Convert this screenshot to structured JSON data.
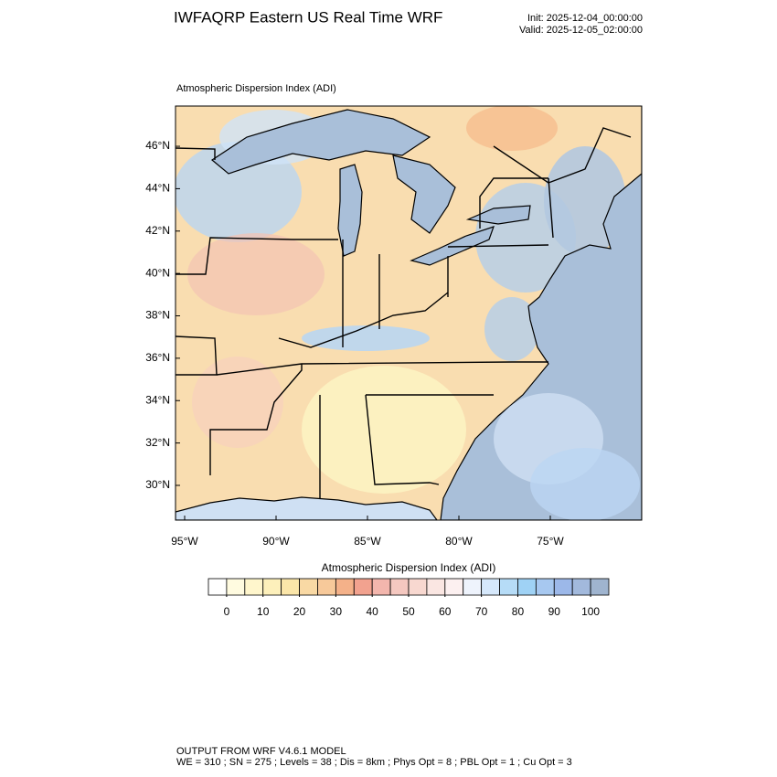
{
  "header": {
    "title": "IWFAQRP Eastern US Real Time WRF",
    "init": "Init: 2025-12-04_00:00:00",
    "valid": "Valid: 2025-12-05_02:00:00"
  },
  "map": {
    "title": "Atmospheric Dispersion Index   (ADI)",
    "latlim": [
      28.36,
      47.9
    ],
    "lonlim": [
      -95.5,
      -70.0
    ],
    "latticks": [
      {
        "value": 30,
        "label": "30°N"
      },
      {
        "value": 32,
        "label": "32°N"
      },
      {
        "value": 34,
        "label": "34°N"
      },
      {
        "value": 36,
        "label": "36°N"
      },
      {
        "value": 38,
        "label": "38°N"
      },
      {
        "value": 40,
        "label": "40°N"
      },
      {
        "value": 42,
        "label": "42°N"
      },
      {
        "value": 44,
        "label": "44°N"
      },
      {
        "value": 46,
        "label": "46°N"
      }
    ],
    "lonticks": [
      {
        "value": -95,
        "label": "95°W"
      },
      {
        "value": -90,
        "label": "90°W"
      },
      {
        "value": -85,
        "label": "85°W"
      },
      {
        "value": -80,
        "label": "80°W"
      },
      {
        "value": -75,
        "label": "75°W"
      }
    ]
  },
  "colorbar": {
    "title": "Atmospheric Dispersion Index  (ADI)",
    "range": [
      -5,
      105
    ],
    "ticks": [
      0,
      10,
      20,
      30,
      40,
      50,
      60,
      70,
      80,
      90,
      100
    ],
    "colors": [
      "#ffffff",
      "#fffbe0",
      "#fff6cc",
      "#fdf0bb",
      "#fbe6a9",
      "#f9d9a4",
      "#f7c99a",
      "#f4b189",
      "#f2a28f",
      "#f3b6ad",
      "#f5c8c0",
      "#f8d8d0",
      "#fae6e2",
      "#fcf0f0",
      "#eef3fc",
      "#d6e8fb",
      "#b6dcf7",
      "#9fd2f5",
      "#a7c8f0",
      "#9cb8e9",
      "#a2b9dc",
      "#9fb4cf"
    ]
  },
  "footer": [
    "OUTPUT FROM WRF V4.6.1 MODEL",
    "WE = 310 ; SN = 275 ; Levels = 38 ; Dis = 8km ; Phys Opt = 8 ; PBL Opt = 1 ; Cu Opt = 3"
  ]
}
